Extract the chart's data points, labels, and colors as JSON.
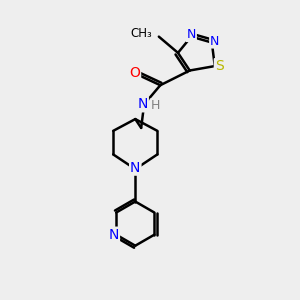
{
  "bg_color": "#eeeeee",
  "bond_color": "#000000",
  "bond_width": 1.8,
  "atom_colors": {
    "N": "#0000ff",
    "O": "#ff0000",
    "S": "#b8b800",
    "C": "#000000",
    "H": "#808080"
  },
  "font_size": 9,
  "fig_size": [
    3.0,
    3.0
  ],
  "dpi": 100
}
